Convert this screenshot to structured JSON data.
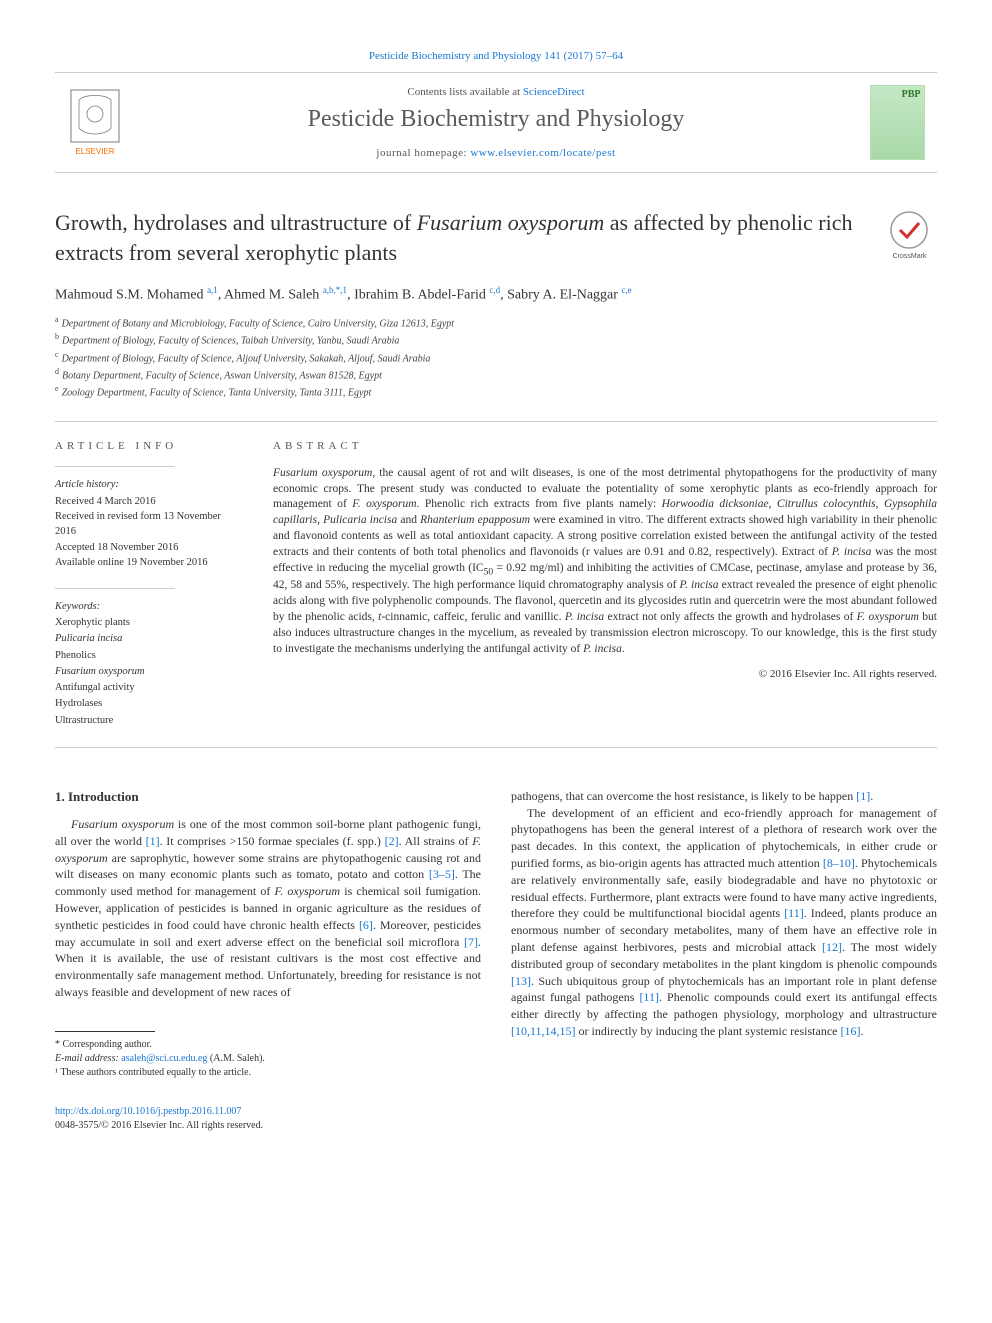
{
  "top_citation": "Pesticide Biochemistry and Physiology 141 (2017) 57–64",
  "header": {
    "contents_prefix": "Contents lists available at ",
    "contents_link": "ScienceDirect",
    "journal_name": "Pesticide Biochemistry and Physiology",
    "homepage_prefix": "journal homepage: ",
    "homepage_link": "www.elsevier.com/locate/pest",
    "cover_abbrev": "PBP"
  },
  "title_html": "Growth, hydrolases and ultrastructure of <em>Fusarium oxysporum</em> as affected by phenolic rich extracts from several xerophytic plants",
  "crossmark_label": "CrossMark",
  "authors_html": "Mahmoud S.M. Mohamed <sup><a>a,1</a></sup>, Ahmed M. Saleh <sup><a>a,b,*,1</a></sup>, Ibrahim B. Abdel-Farid <sup><a>c,d</a></sup>, Sabry A. El-Naggar <sup><a>c,e</a></sup>",
  "affiliations": [
    {
      "key": "a",
      "text": "Department of Botany and Microbiology, Faculty of Science, Cairo University, Giza 12613, Egypt"
    },
    {
      "key": "b",
      "text": "Department of Biology, Faculty of Sciences, Taibah University, Yanbu, Saudi Arabia"
    },
    {
      "key": "c",
      "text": "Department of Biology, Faculty of Science, Aljouf University, Sakakah, Aljouf, Saudi Arabia"
    },
    {
      "key": "d",
      "text": "Botany Department, Faculty of Science, Aswan University, Aswan 81528, Egypt"
    },
    {
      "key": "e",
      "text": "Zoology Department, Faculty of Science, Tanta University, Tanta 3111, Egypt"
    }
  ],
  "article_info": {
    "label": "ARTICLE INFO",
    "history_heading": "Article history:",
    "history": [
      "Received 4 March 2016",
      "Received in revised form 13 November 2016",
      "Accepted 18 November 2016",
      "Available online 19 November 2016"
    ],
    "keywords_heading": "Keywords:",
    "keywords": [
      "Xerophytic plants",
      "Pulicaria incisa",
      "Phenolics",
      "Fusarium oxysporum",
      "Antifungal activity",
      "Hydrolases",
      "Ultrastructure"
    ]
  },
  "abstract": {
    "label": "ABSTRACT",
    "text_html": "<em>Fusarium oxysporum</em>, the causal agent of rot and wilt diseases, is one of the most detrimental phytopathogens for the productivity of many economic crops. The present study was conducted to evaluate the potentiality of some xerophytic plants as eco-friendly approach for management of <em>F. oxysporum</em>. Phenolic rich extracts from five plants namely: <em>Horwoodia dicksoniae</em>, <em>Citrullus colocynthis</em>, <em>Gypsophila capillaris</em>, <em>Pulicaria incisa</em> and <em>Rhanterium epapposum</em> were examined in vitro. The different extracts showed high variability in their phenolic and flavonoid contents as well as total antioxidant capacity. A strong positive correlation existed between the antifungal activity of the tested extracts and their contents of both total phenolics and flavonoids (r values are 0.91 and 0.82, respectively). Extract of <em>P. incisa</em> was the most effective in reducing the mycelial growth (IC<sub>50</sub> = 0.92 mg/ml) and inhibiting the activities of CMCase, pectinase, amylase and protease by 36, 42, 58 and 55%, respectively. The high performance liquid chromatography analysis of <em>P. incisa</em> extract revealed the presence of eight phenolic acids along with five polyphenolic compounds. The flavonol, quercetin and its glycosides rutin and quercetrin were the most abundant followed by the phenolic acids, <em>t</em>-cinnamic, caffeic, ferulic and vanillic. <em>P. incisa</em> extract not only affects the growth and hydrolases of <em>F. oxysporum</em> but also induces ultrastructure changes in the mycelium, as revealed by transmission electron microscopy. To our knowledge, this is the first study to investigate the mechanisms underlying the antifungal activity of <em>P. incisa</em>.",
    "copyright": "© 2016 Elsevier Inc. All rights reserved."
  },
  "section1_heading": "1. Introduction",
  "col_left_html": "<em>Fusarium oxysporum</em> is one of the most common soil-borne plant pathogenic fungi, all over the world <a class='ref'>[1]</a>. It comprises &gt;150 formae speciales (f. spp.) <a class='ref'>[2]</a>. All strains of <em>F. oxysporum</em> are saprophytic, however some strains are phytopathogenic causing rot and wilt diseases on many economic plants such as tomato, potato and cotton <a class='ref'>[3–5]</a>. The commonly used method for management of <em>F. oxysporum</em> is chemical soil fumigation. However, application of pesticides is banned in organic agriculture as the residues of synthetic pesticides in food could have chronic health effects <a class='ref'>[6]</a>. Moreover, pesticides may accumulate in soil and exert adverse effect on the beneficial soil microflora <a class='ref'>[7]</a>. When it is available, the use of resistant cultivars is the most cost effective and environmentally safe management method. Unfortunately, breeding for resistance is not always feasible and development of new races of",
  "col_right_html_p1": "pathogens, that can overcome the host resistance, is likely to be happen <a class='ref'>[1]</a>.",
  "col_right_html_p2": "The development of an efficient and eco-friendly approach for management of phytopathogens has been the general interest of a plethora of research work over the past decades. In this context, the application of phytochemicals, in either crude or purified forms, as bio-origin agents has attracted much attention <a class='ref'>[8–10]</a>. Phytochemicals are relatively environmentally safe, easily biodegradable and have no phytotoxic or residual effects. Furthermore, plant extracts were found to have many active ingredients, therefore they could be multifunctional biocidal agents <a class='ref'>[11]</a>. Indeed, plants produce an enormous number of secondary metabolites, many of them have an effective role in plant defense against herbivores, pests and microbial attack <a class='ref'>[12]</a>. The most widely distributed group of secondary metabolites in the plant kingdom is phenolic compounds <a class='ref'>[13]</a>. Such ubiquitous group of phytochemicals has an important role in plant defense against fungal pathogens <a class='ref'>[11]</a>. Phenolic compounds could exert its antifungal effects either directly by affecting the pathogen physiology, morphology and ultrastructure <a class='ref'>[10,11,14,15]</a> or indirectly by inducing the plant systemic resistance <a class='ref'>[16]</a>.",
  "footnotes": {
    "corresponding": "* Corresponding author.",
    "email_label": "E-mail address:",
    "email": "asaleh@sci.cu.edu.eg",
    "email_suffix": " (A.M. Saleh).",
    "contrib": "¹ These authors contributed equally to the article."
  },
  "footer": {
    "doi": "http://dx.doi.org/10.1016/j.pestbp.2016.11.007",
    "issn_line": "0048-3575/© 2016 Elsevier Inc. All rights reserved."
  },
  "colors": {
    "link": "#1976d2",
    "text": "#333333",
    "rule": "#cccccc",
    "elsevier_orange": "#ff6a00",
    "elsevier_gray": "#7a7a7a"
  }
}
